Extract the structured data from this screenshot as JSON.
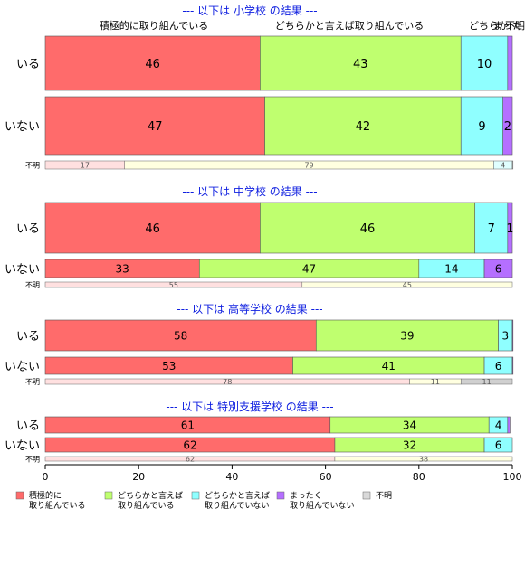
{
  "chart_data": {
    "type": "bar",
    "orientation": "horizontal",
    "stacked": true,
    "xlim": [
      0,
      100
    ],
    "x_ticks": [
      0,
      20,
      40,
      60,
      80,
      100
    ],
    "top_category_labels": [
      "積極的に取り組んでいる",
      "どちらかと言えば取り組んでいる",
      "どちらか",
      "まった",
      "不明"
    ],
    "legend": {
      "placement": "bottom",
      "items": [
        {
          "label_lines": [
            "積極的に",
            "取り組んでいる"
          ],
          "color": "#FF6B6B"
        },
        {
          "label_lines": [
            "どちらかと言えば",
            "取り組んでいる"
          ],
          "color": "#BFFF6F"
        },
        {
          "label_lines": [
            "どちらかと言えば",
            "取り組んでいない"
          ],
          "color": "#8FFFFF"
        },
        {
          "label_lines": [
            "まったく",
            "取り組んでいない"
          ],
          "color": "#B56FFF"
        },
        {
          "label_lines": [
            "不明"
          ],
          "color": "#D9D9D9"
        }
      ]
    },
    "unknown_colors": [
      "#FFE0E0",
      "#FFFFE0",
      "#E0FFFF",
      "#EEE0FF",
      "#D0D0D0"
    ],
    "panels": [
      {
        "title": "--- 以下は 小学校 の結果 ---",
        "rows": [
          {
            "label": "いる",
            "values": [
              46,
              43,
              10,
              1
            ],
            "value_labels": [
              "46",
              "43",
              "10",
              ""
            ]
          },
          {
            "label": "いない",
            "values": [
              47,
              42,
              9,
              2
            ],
            "value_labels": [
              "47",
              "42",
              "9",
              "2"
            ]
          }
        ],
        "unknown": {
          "label": "不明",
          "values": [
            17,
            79,
            4,
            0,
            0.5
          ],
          "value_labels": [
            "17",
            "79",
            "4",
            "",
            ""
          ]
        }
      },
      {
        "title": "--- 以下は 中学校 の結果 ---",
        "rows": [
          {
            "label": "いる",
            "values": [
              46,
              46,
              7,
              1
            ],
            "value_labels": [
              "46",
              "46",
              "7",
              "1"
            ]
          },
          {
            "label": "いない",
            "values": [
              33,
              47,
              14,
              6
            ],
            "value_labels": [
              "33",
              "47",
              "14",
              "6"
            ]
          }
        ],
        "unknown": {
          "label": "不明",
          "values": [
            55,
            45,
            0,
            0,
            0
          ],
          "value_labels": [
            "55",
            "45",
            "",
            "",
            ""
          ]
        }
      },
      {
        "title": "--- 以下は 高等学校 の結果 ---",
        "rows": [
          {
            "label": "いる",
            "values": [
              58,
              39,
              3,
              0.5
            ],
            "value_labels": [
              "58",
              "39",
              "3",
              ""
            ]
          },
          {
            "label": "いない",
            "values": [
              53,
              41,
              6,
              0.5
            ],
            "value_labels": [
              "53",
              "41",
              "6",
              ""
            ]
          }
        ],
        "unknown": {
          "label": "不明",
          "values": [
            78,
            11,
            0,
            0,
            11
          ],
          "value_labels": [
            "78",
            "11",
            "",
            "",
            "11"
          ]
        }
      },
      {
        "title": "--- 以下は 特別支援学校 の結果 ---",
        "rows": [
          {
            "label": "いる",
            "values": [
              61,
              34,
              4,
              0.5
            ],
            "value_labels": [
              "61",
              "34",
              "4",
              ""
            ]
          },
          {
            "label": "いない",
            "values": [
              62,
              32,
              6,
              0
            ],
            "value_labels": [
              "62",
              "32",
              "6",
              ""
            ]
          }
        ],
        "unknown": {
          "label": "不明",
          "values": [
            62,
            38,
            0,
            0,
            0
          ],
          "value_labels": [
            "62",
            "38",
            "",
            "",
            ""
          ]
        }
      }
    ]
  }
}
